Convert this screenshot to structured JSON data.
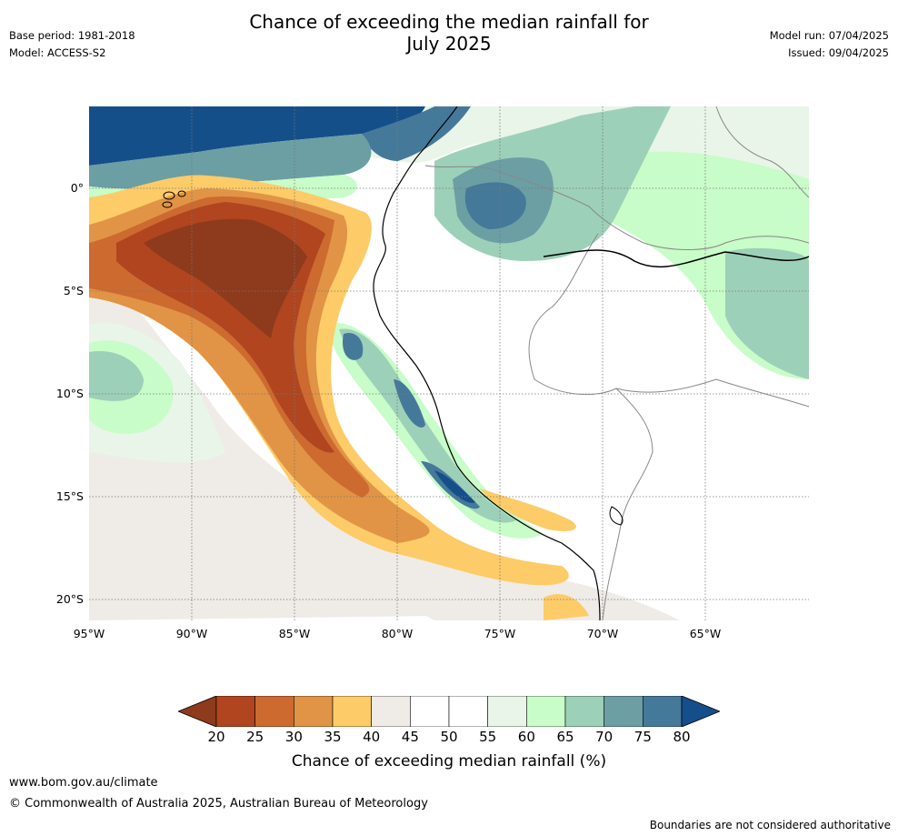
{
  "title_line1": "Chance of exceeding the median rainfall for",
  "title_line2": "July 2025",
  "meta": {
    "base_period": "Base period: 1981-2018",
    "model": "Model: ACCESS-S2",
    "model_run": "Model run: 07/04/2025",
    "issued": "Issued: 09/04/2025"
  },
  "latitudes": [
    {
      "label": "0°",
      "lat": 0
    },
    {
      "label": "5°S",
      "lat": -5
    },
    {
      "label": "10°S",
      "lat": -10
    },
    {
      "label": "15°S",
      "lat": -15
    },
    {
      "label": "20°S",
      "lat": -20
    }
  ],
  "longitudes": [
    {
      "label": "95°W",
      "lon": -95
    },
    {
      "label": "90°W",
      "lon": -90
    },
    {
      "label": "85°W",
      "lon": -85
    },
    {
      "label": "80°W",
      "lon": -80
    },
    {
      "label": "75°W",
      "lon": -75
    },
    {
      "label": "70°W",
      "lon": -70
    },
    {
      "label": "65°W",
      "lon": -65
    }
  ],
  "colorbar": {
    "ticks": [
      "20",
      "25",
      "30",
      "35",
      "40",
      "45",
      "50",
      "55",
      "60",
      "65",
      "70",
      "75",
      "80"
    ],
    "colors": [
      "#8e3a1d",
      "#b0451f",
      "#cc6a30",
      "#e19445",
      "#fdcb67",
      "#efebe7",
      "#ffffff",
      "#ffffff",
      "#e8f5e8",
      "#c8fcc8",
      "#9dd0b8",
      "#6b9fa4",
      "#45799a",
      "#154f8a"
    ],
    "label": "Chance of exceeding median rainfall (%)"
  },
  "footer": {
    "url": "www.bom.gov.au/climate",
    "copyright": "© Commonwealth of Australia 2025, Australian Bureau of Meteorology",
    "disclaimer": "Boundaries are not considered authoritative"
  }
}
